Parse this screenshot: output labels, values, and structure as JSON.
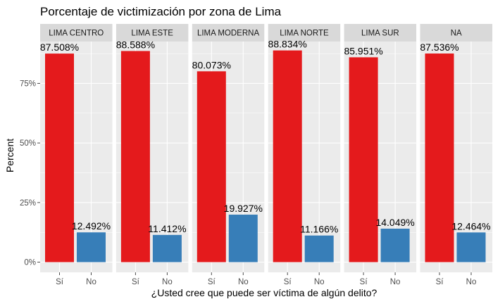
{
  "chart_data": {
    "type": "bar",
    "title": "Porcentaje de victimización por zona de Lima",
    "xlabel": "¿Usted cree que puede ser víctima de algún delito?",
    "ylabel": "Percent",
    "ylim": [
      0,
      0.9
    ],
    "y_ticks": [
      {
        "value": 0,
        "label": "0%"
      },
      {
        "value": 0.25,
        "label": "25%"
      },
      {
        "value": 0.5,
        "label": "50%"
      },
      {
        "value": 0.75,
        "label": "75%"
      }
    ],
    "grid": true,
    "categories": [
      "Sí",
      "No"
    ],
    "colors": {
      "Sí": "#e41a1c",
      "No": "#377eb8"
    },
    "panels": [
      {
        "name": "LIMA CENTRO",
        "values": [
          0.87508,
          0.12492
        ],
        "labels": [
          "87.508%",
          "12.492%"
        ]
      },
      {
        "name": "LIMA ESTE",
        "values": [
          0.88588,
          0.11412
        ],
        "labels": [
          "88.588%",
          "11.412%"
        ]
      },
      {
        "name": "LIMA MODERNA",
        "values": [
          0.80073,
          0.19927
        ],
        "labels": [
          "80.073%",
          "19.927%"
        ]
      },
      {
        "name": "LIMA NORTE",
        "values": [
          0.88834,
          0.11166
        ],
        "labels": [
          "88.834%",
          "11.166%"
        ]
      },
      {
        "name": "LIMA SUR",
        "values": [
          0.85951,
          0.14049
        ],
        "labels": [
          "85.951%",
          "14.049%"
        ]
      },
      {
        "name": "NA",
        "values": [
          0.87536,
          0.12464
        ],
        "labels": [
          "87.536%",
          "12.464%"
        ]
      }
    ]
  },
  "style": {
    "panel_background": "#ebebeb",
    "strip_background": "#d9d9d9",
    "grid_major": "#ffffff",
    "tick_color": "#4d4d4d"
  }
}
